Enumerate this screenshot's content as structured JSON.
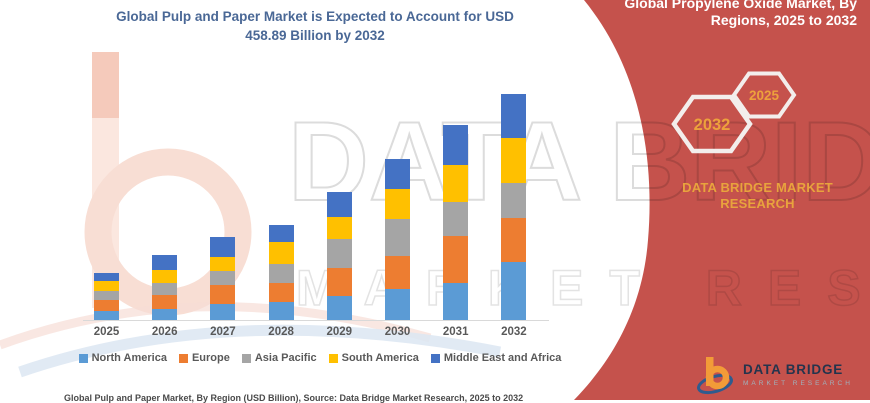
{
  "chart": {
    "title_line1": "Global Pulp and Paper Market is Expected to Account for USD",
    "title_line2": "458.89 Billion by 2032",
    "title_color": "#4a6896"
  },
  "chart_data": {
    "type": "bar",
    "stacked": true,
    "title": "Global Pulp and Paper Market is Expected to Account for USD 458.89 Billion by 2032",
    "xlabel": "",
    "ylabel": "",
    "unit": "USD Billion",
    "grid": false,
    "legend_position": "bottom",
    "ylim": [
      0,
      459
    ],
    "categories": [
      "2025",
      "2026",
      "2027",
      "2028",
      "2029",
      "2030",
      "2031",
      "2032"
    ],
    "series": [
      {
        "name": "North America",
        "color": "#5B9BD5",
        "values": [
          19.7,
          23.8,
          33.9,
          38.6,
          50.8,
          65.6,
          77.8,
          118.8
        ]
      },
      {
        "name": "Europe",
        "color": "#ED7D31",
        "values": [
          22.3,
          28.4,
          38.6,
          39.2,
          57.5,
          66.4,
          93.4,
          89.5
        ]
      },
      {
        "name": "Asia Pacific",
        "color": "#A5A5A5",
        "values": [
          18.9,
          23.8,
          28.4,
          37.2,
          57.5,
          74.5,
          69.0,
          69.7
        ]
      },
      {
        "name": "South America",
        "color": "#FFC000",
        "values": [
          19.7,
          27.0,
          29.0,
          44.1,
          44.1,
          60.9,
          75.7,
          91.5
        ]
      },
      {
        "name": "Middle East and Africa",
        "color": "#4472C4",
        "values": [
          16.9,
          30.5,
          40.0,
          35.1,
          50.8,
          59.5,
          79.8,
          89.4
        ]
      }
    ],
    "totals_estimated": [
      97.5,
      133.5,
      169.9,
      194.2,
      260.7,
      326.9,
      395.7,
      458.9
    ]
  },
  "banner": {
    "color": "#C5524C",
    "heading_line1": "Global Propylene Oxide Market, By",
    "heading_line2": "Regions, 2025 to 2032",
    "heading_color": "#FFFFFF",
    "hexagon_back_label": "2032",
    "hexagon_front_label": "2025",
    "hex_label_color": "#EDA13C",
    "hex_outline_color": "#F3EEEC",
    "brand_line1": "DATA BRIDGE MARKET",
    "brand_line2": "RESEARCH",
    "brand_color": "#E8A33D"
  },
  "logo": {
    "title": "DATA BRIDGE",
    "subtitle": "MARKET RESEARCH",
    "title_color": "#24344D",
    "subtitle_color": "#9FB3BD",
    "icon_orange": "#F29B38",
    "icon_blue": "#2F5B8E"
  },
  "watermark": {
    "line1": "DATA BRIDGE",
    "line2": "MARKET RESEARCH"
  },
  "footer": {
    "source_text": "Global Pulp and Paper Market, By Region (USD Billion), Source: Data Bridge Market Research, 2025 to 2032",
    "color": "#4a4a4a"
  }
}
